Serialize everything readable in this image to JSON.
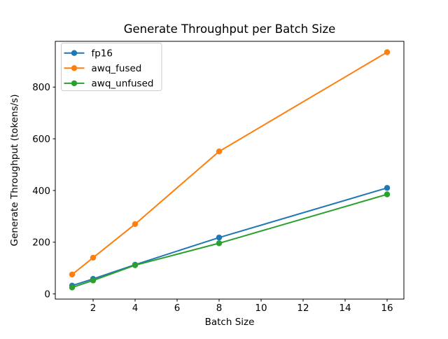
{
  "chart_data": {
    "type": "line",
    "title": "Generate Throughput per Batch Size",
    "xlabel": "Batch Size",
    "ylabel": "Generate Throughput (tokens/s)",
    "x": [
      1,
      2,
      4,
      8,
      16
    ],
    "series": [
      {
        "name": "fp16",
        "color": "#1f77b4",
        "values": [
          32,
          58,
          113,
          218,
          410
        ]
      },
      {
        "name": "awq_fused",
        "color": "#ff7f0e",
        "values": [
          75,
          140,
          270,
          551,
          935
        ]
      },
      {
        "name": "awq_unfused",
        "color": "#2ca02c",
        "values": [
          25,
          52,
          111,
          196,
          385
        ]
      }
    ],
    "xticks": [
      2,
      4,
      6,
      8,
      10,
      12,
      14,
      16
    ],
    "yticks": [
      0,
      200,
      400,
      600,
      800
    ],
    "xlim": [
      0.2,
      16.8
    ],
    "ylim": [
      -20,
      977
    ],
    "legend_position": "upper left",
    "grid": false,
    "marker": "circle",
    "line_width": 2,
    "marker_radius": 4.2,
    "colors": {
      "spine": "#000000",
      "background": "#ffffff",
      "legend_border": "#cccccc"
    }
  }
}
